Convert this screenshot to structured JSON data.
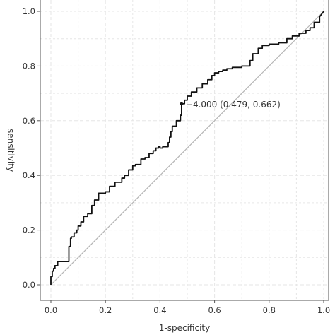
{
  "chart_data": {
    "type": "line",
    "title": "",
    "xlabel": "1-specificity",
    "ylabel": "sensitivity",
    "xlim": [
      0,
      1
    ],
    "ylim": [
      0,
      1
    ],
    "xticks": [
      0,
      0.2,
      0.4,
      0.6,
      0.8,
      1
    ],
    "yticks": [
      0,
      0.2,
      0.4,
      0.6,
      0.8,
      1
    ],
    "xtick_labels": [
      "0.0",
      "0.2",
      "0.4",
      "0.6",
      "0.8",
      "1.0"
    ],
    "ytick_labels": [
      "0.0",
      "0.2",
      "0.4",
      "0.6",
      "0.8",
      "1.0"
    ],
    "grid": true,
    "reference_line": {
      "from": [
        0,
        0
      ],
      "to": [
        1,
        1
      ]
    },
    "annotation": {
      "x": 0.479,
      "y": 0.662,
      "text": "−4.000 (0.479, 0.662)"
    },
    "series": [
      {
        "x": [
          0,
          0,
          0.005,
          0.005,
          0.01,
          0.01,
          0.015,
          0.015,
          0.025,
          0.025,
          0.066,
          0.066,
          0.072,
          0.072,
          0.075,
          0.075,
          0.085,
          0.085,
          0.095,
          0.095,
          0.1,
          0.1,
          0.11,
          0.11,
          0.12,
          0.12,
          0.135,
          0.135,
          0.15,
          0.15,
          0.16,
          0.16,
          0.175,
          0.175,
          0.2,
          0.2,
          0.215,
          0.215,
          0.235,
          0.235,
          0.26,
          0.26,
          0.27,
          0.27,
          0.285,
          0.285,
          0.3,
          0.3,
          0.31,
          0.31,
          0.33,
          0.33,
          0.345,
          0.345,
          0.36,
          0.36,
          0.375,
          0.375,
          0.385,
          0.385,
          0.395,
          0.395,
          0.4,
          0.4,
          0.41,
          0.41,
          0.43,
          0.43,
          0.435,
          0.435,
          0.44,
          0.44,
          0.445,
          0.445,
          0.46,
          0.46,
          0.475,
          0.475,
          0.479,
          0.479,
          0.49,
          0.49,
          0.5,
          0.5,
          0.515,
          0.515,
          0.535,
          0.535,
          0.555,
          0.555,
          0.575,
          0.575,
          0.59,
          0.59,
          0.6,
          0.6,
          0.615,
          0.615,
          0.63,
          0.63,
          0.645,
          0.645,
          0.665,
          0.665,
          0.7,
          0.7,
          0.73,
          0.73,
          0.74,
          0.74,
          0.76,
          0.76,
          0.775,
          0.775,
          0.8,
          0.8,
          0.835,
          0.835,
          0.865,
          0.865,
          0.885,
          0.885,
          0.91,
          0.91,
          0.935,
          0.935,
          0.95,
          0.95,
          0.965,
          0.965,
          0.985,
          0.985,
          1
        ],
        "y": [
          0,
          0.03,
          0.03,
          0.05,
          0.05,
          0.06,
          0.06,
          0.07,
          0.07,
          0.085,
          0.085,
          0.14,
          0.14,
          0.17,
          0.17,
          0.175,
          0.175,
          0.19,
          0.19,
          0.2,
          0.2,
          0.215,
          0.215,
          0.23,
          0.23,
          0.25,
          0.25,
          0.26,
          0.26,
          0.29,
          0.29,
          0.31,
          0.31,
          0.335,
          0.335,
          0.34,
          0.34,
          0.36,
          0.36,
          0.375,
          0.375,
          0.39,
          0.39,
          0.4,
          0.4,
          0.42,
          0.42,
          0.435,
          0.435,
          0.44,
          0.44,
          0.46,
          0.46,
          0.465,
          0.465,
          0.48,
          0.48,
          0.49,
          0.49,
          0.5,
          0.5,
          0.505,
          0.505,
          0.5,
          0.5,
          0.505,
          0.505,
          0.52,
          0.52,
          0.54,
          0.54,
          0.56,
          0.56,
          0.58,
          0.58,
          0.6,
          0.6,
          0.62,
          0.62,
          0.662,
          0.662,
          0.675,
          0.675,
          0.69,
          0.69,
          0.705,
          0.705,
          0.72,
          0.72,
          0.735,
          0.735,
          0.75,
          0.75,
          0.765,
          0.765,
          0.775,
          0.775,
          0.78,
          0.78,
          0.785,
          0.785,
          0.79,
          0.79,
          0.795,
          0.795,
          0.8,
          0.8,
          0.82,
          0.82,
          0.845,
          0.845,
          0.865,
          0.865,
          0.875,
          0.875,
          0.88,
          0.88,
          0.885,
          0.885,
          0.9,
          0.9,
          0.91,
          0.91,
          0.92,
          0.92,
          0.93,
          0.93,
          0.94,
          0.94,
          0.96,
          0.96,
          0.98,
          1
        ]
      }
    ]
  },
  "colors": {
    "curve": "#111111",
    "reference": "#b5b5b5",
    "grid": "#e6e6e6",
    "frame": "#555555",
    "text": "#333333"
  }
}
